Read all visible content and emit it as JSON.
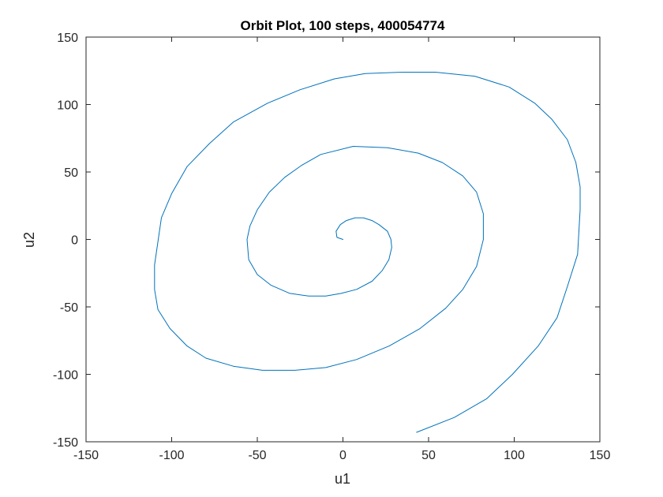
{
  "chart_data": {
    "type": "line",
    "title": "Orbit Plot, 100 steps, 400054774",
    "xlabel": "u1",
    "ylabel": "u2",
    "xlim": [
      -150,
      150
    ],
    "ylim": [
      -150,
      150
    ],
    "xticks": [
      -150,
      -100,
      -50,
      0,
      50,
      100,
      150
    ],
    "yticks": [
      -150,
      -100,
      -50,
      0,
      50,
      100,
      150
    ],
    "xtick_labels": [
      "-150",
      "-100",
      "-50",
      "0",
      "50",
      "100",
      "150"
    ],
    "ytick_labels": [
      "-150",
      "-100",
      "-50",
      "0",
      "50",
      "100",
      "150"
    ],
    "grid": false,
    "legend": "none",
    "line_color": "#0072BD",
    "axis_color": "#262626",
    "series": [
      {
        "x": [
          0,
          -3.5,
          -4,
          -1.5,
          2,
          7,
          12,
          17,
          21,
          26,
          28,
          28.5,
          26.8,
          23,
          17,
          8,
          -1,
          -10,
          -20,
          -31,
          -42,
          -50,
          -55,
          -56,
          -54.3,
          -50,
          -43,
          -34,
          -24,
          -13,
          6,
          26,
          44,
          58,
          70,
          78,
          82,
          82,
          78,
          70,
          60,
          45,
          27,
          8,
          -10,
          -28,
          -47,
          -64,
          -80,
          -91,
          -101,
          -108,
          -110,
          -110,
          -106,
          -100,
          -91,
          -78,
          -64,
          -44,
          -25,
          -5,
          13,
          35,
          54,
          77,
          97,
          112,
          122,
          131,
          136,
          138.5,
          138.5,
          137,
          131,
          125,
          114,
          99,
          84,
          65,
          43
        ],
        "y": [
          0,
          1.5,
          6,
          11,
          14,
          16,
          16,
          14,
          11,
          6,
          0,
          -6,
          -15,
          -23,
          -31,
          -37,
          -40,
          -42,
          -42,
          -40,
          -34,
          -26,
          -15,
          0,
          10,
          22,
          35,
          46,
          55,
          63,
          69,
          68,
          64,
          57,
          47,
          35,
          19,
          0,
          -20,
          -37,
          -51,
          -66,
          -79,
          -89,
          -95,
          -97,
          -97,
          -94,
          -88,
          -79,
          -66,
          -52,
          -37,
          -19,
          16,
          34,
          54,
          71,
          87,
          101,
          111,
          119,
          123,
          124,
          124,
          121,
          113,
          101,
          89,
          74,
          57,
          39,
          22,
          -11,
          -35,
          -58,
          -79,
          -100,
          -118,
          -132,
          -143
        ]
      }
    ]
  }
}
